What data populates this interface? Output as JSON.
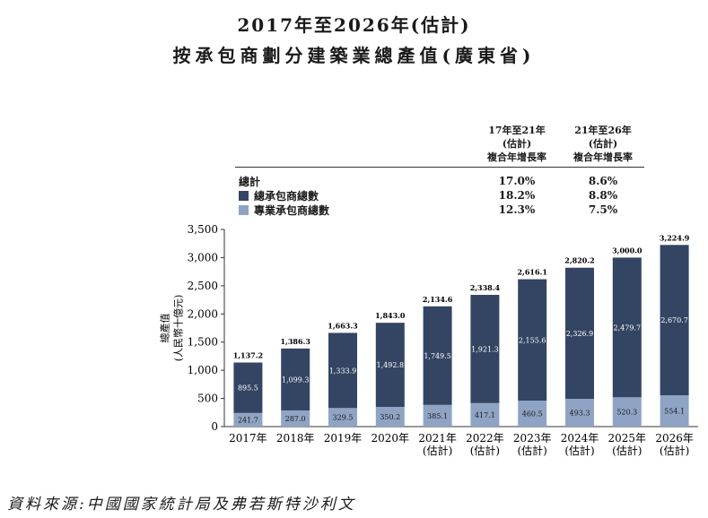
{
  "title_line1": "2017年至2026年(估計)",
  "title_line2": "按承包商劃分建築業總產值(廣東省)",
  "cagr_table": {
    "col1_header": "17年至21年\n(估計)\n複合年增長率",
    "col2_header": "21年至26年\n(估計)\n複合年增長率",
    "rows": [
      {
        "label": "總計",
        "col1": "17.0%",
        "col2": "8.6%"
      },
      {
        "label": "總承包商總數",
        "col1": "18.2%",
        "col2": "8.8%"
      },
      {
        "label": "專業承包商總數",
        "col1": "12.3%",
        "col2": "7.5%"
      }
    ]
  },
  "source": "資料來源:中國國家統計局及弗若斯特沙利文",
  "colors": {
    "general": "#344563",
    "specialty": "#8fa4c4"
  },
  "chart_data": {
    "type": "bar",
    "stacked": true,
    "ylabel": "總產值\n(人民幣十億元)",
    "ylim": [
      0,
      3500
    ],
    "yticks": [
      0,
      500,
      1000,
      1500,
      2000,
      2500,
      3000,
      3500
    ],
    "ytick_labels": [
      "0",
      "500",
      "1,000",
      "1,500",
      "2,000",
      "2,500",
      "3,000",
      "3,500"
    ],
    "categories": [
      "2017年",
      "2018年",
      "2019年",
      "2020年",
      "2021年\n(估計)",
      "2022年\n(估計)",
      "2023年\n(估計)",
      "2024年\n(估計)",
      "2025年\n(估計)",
      "2026年\n(估計)"
    ],
    "series": [
      {
        "name": "專業承包商總數",
        "values": [
          241.7,
          287.0,
          329.5,
          350.2,
          385.1,
          417.1,
          460.5,
          493.3,
          520.3,
          554.1
        ],
        "labels": [
          "241.7",
          "287.0",
          "329.5",
          "350.2",
          "385.1",
          "417.1",
          "460.5",
          "493.3",
          "520.3",
          "554.1"
        ]
      },
      {
        "name": "總承包商總數",
        "values": [
          895.5,
          1099.3,
          1333.9,
          1492.8,
          1749.5,
          1921.3,
          2155.6,
          2326.9,
          2479.7,
          2670.7
        ],
        "labels": [
          "895.5",
          "1,099.3",
          "1,333.9",
          "1,492.8",
          "1,749.5",
          "1,921.3",
          "2,155.6",
          "2,326.9",
          "2,479.7",
          "2,670.7"
        ]
      }
    ],
    "totals": [
      1137.2,
      1386.3,
      1663.3,
      1843.0,
      2134.6,
      2338.4,
      2616.1,
      2820.2,
      3000.0,
      3224.9
    ],
    "total_labels": [
      "1,137.2",
      "1,386.3",
      "1,663.3",
      "1,843.0",
      "2,134.6",
      "2,338.4",
      "2,616.1",
      "2,820.2",
      "3,000.0",
      "3,224.9"
    ]
  }
}
